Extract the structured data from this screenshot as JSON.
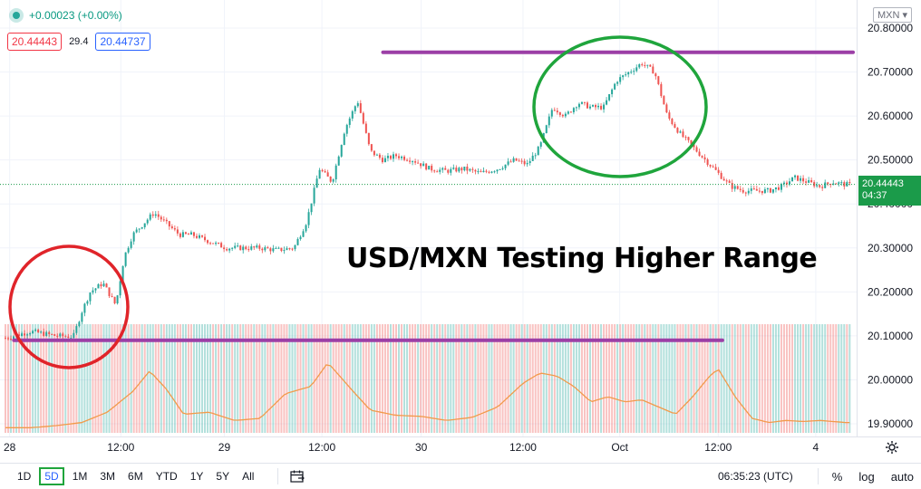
{
  "legend": {
    "change": "+0.00023 (+0.00%)",
    "sell_price": "20.44443",
    "spread": "29.4",
    "buy_price": "20.44737"
  },
  "currency_button": "MXN ▾",
  "last_price_tag": {
    "price": "20.44443",
    "countdown": "04:37"
  },
  "annotation": "USD/MXN Testing Higher Range",
  "time_axis_labels": [
    "28",
    "12:00",
    "29",
    "12:00",
    "30",
    "12:00",
    "Oct",
    "12:00",
    "4"
  ],
  "timeframes": [
    "1D",
    "5D",
    "1M",
    "3M",
    "6M",
    "YTD",
    "1Y",
    "5Y",
    "All"
  ],
  "active_timeframe": "5D",
  "clock": "06:35:23 (UTC)",
  "right_tools": [
    "%",
    "log",
    "auto"
  ],
  "colors": {
    "up": "#26a69a",
    "down": "#ef5350",
    "ma": "#f29a4a",
    "hline": "#9c3fa6",
    "ellipse_red": "#e0242a",
    "ellipse_green": "#1fa53c",
    "price_tag": "#1b9b4a"
  },
  "chart_data": {
    "type": "line",
    "title": "",
    "xlabel": "",
    "ylabel": "",
    "ylim": [
      19.88,
      20.83
    ],
    "y_ticks": [
      "20.80000",
      "20.70000",
      "20.60000",
      "20.50000",
      "20.40000",
      "20.30000",
      "20.20000",
      "20.10000",
      "20.00000",
      "19.90000"
    ],
    "x_ticks": [
      "28",
      "12:00",
      "29",
      "12:00",
      "30",
      "12:00",
      "Oct",
      "12:00",
      "4"
    ],
    "x_index_range": [
      0,
      100
    ],
    "tick_positions": [
      0.5,
      13.6,
      25.8,
      37.3,
      49.0,
      61.0,
      72.4,
      84.0,
      95.5
    ],
    "series": [
      {
        "x": [
          0,
          3,
          6,
          8,
          9,
          10,
          11.5,
          13,
          14,
          15,
          16,
          17.5,
          19,
          20.5,
          22,
          24,
          26,
          28,
          30,
          32,
          34,
          35.5,
          37,
          38.5,
          40,
          41.5,
          43,
          44.5,
          46,
          48,
          50,
          52,
          54,
          56,
          58,
          60,
          61.5,
          63,
          64.5,
          66,
          67.5,
          69,
          70.5,
          72,
          73.5,
          75,
          76.5,
          78,
          79.5,
          81,
          82.5,
          84,
          85.5,
          87,
          88.5,
          90,
          91.5,
          93,
          94.5,
          96,
          97.5,
          99
        ],
        "values": [
          20.095,
          20.11,
          20.1,
          20.098,
          20.155,
          20.2,
          20.22,
          20.17,
          20.28,
          20.33,
          20.35,
          20.38,
          20.355,
          20.33,
          20.33,
          20.315,
          20.3,
          20.3,
          20.3,
          20.295,
          20.3,
          20.36,
          20.48,
          20.45,
          20.57,
          20.635,
          20.52,
          20.5,
          20.51,
          20.5,
          20.48,
          20.475,
          20.48,
          20.47,
          20.48,
          20.5,
          20.49,
          20.53,
          20.62,
          20.6,
          20.63,
          20.62,
          20.62,
          20.68,
          20.7,
          20.72,
          20.7,
          20.6,
          20.56,
          20.53,
          20.5,
          20.47,
          20.44,
          20.43,
          20.43,
          20.43,
          20.44,
          20.46,
          20.45,
          20.44,
          20.45,
          20.444
        ]
      }
    ],
    "volume": {
      "x": [
        0,
        3,
        6,
        9,
        12,
        15,
        17,
        19,
        21,
        24,
        27,
        30,
        33,
        36,
        38,
        41,
        43,
        46,
        49,
        52,
        55,
        58,
        61,
        63,
        65,
        67,
        69,
        71,
        73,
        75,
        77,
        79,
        81,
        83,
        84,
        86,
        88,
        90,
        92,
        94,
        96,
        99
      ],
      "values": [
        0.05,
        0.05,
        0.07,
        0.1,
        0.2,
        0.4,
        0.6,
        0.42,
        0.18,
        0.2,
        0.12,
        0.14,
        0.38,
        0.45,
        0.68,
        0.4,
        0.22,
        0.17,
        0.16,
        0.12,
        0.15,
        0.25,
        0.48,
        0.58,
        0.55,
        0.45,
        0.3,
        0.35,
        0.3,
        0.32,
        0.25,
        0.18,
        0.35,
        0.55,
        0.62,
        0.35,
        0.14,
        0.1,
        0.12,
        0.11,
        0.12,
        0.1
      ]
    },
    "horizontal_lines": [
      {
        "y": 20.745,
        "x_from": 44.5,
        "x_to": 100
      },
      {
        "y": 20.09,
        "x_from": 1,
        "x_to": 84.5
      }
    ],
    "ellipses": [
      {
        "color": "red",
        "cx": 20.095
      },
      {
        "color": "green",
        "cx": 20.64
      }
    ],
    "last_price": 20.44443,
    "grid": true
  }
}
